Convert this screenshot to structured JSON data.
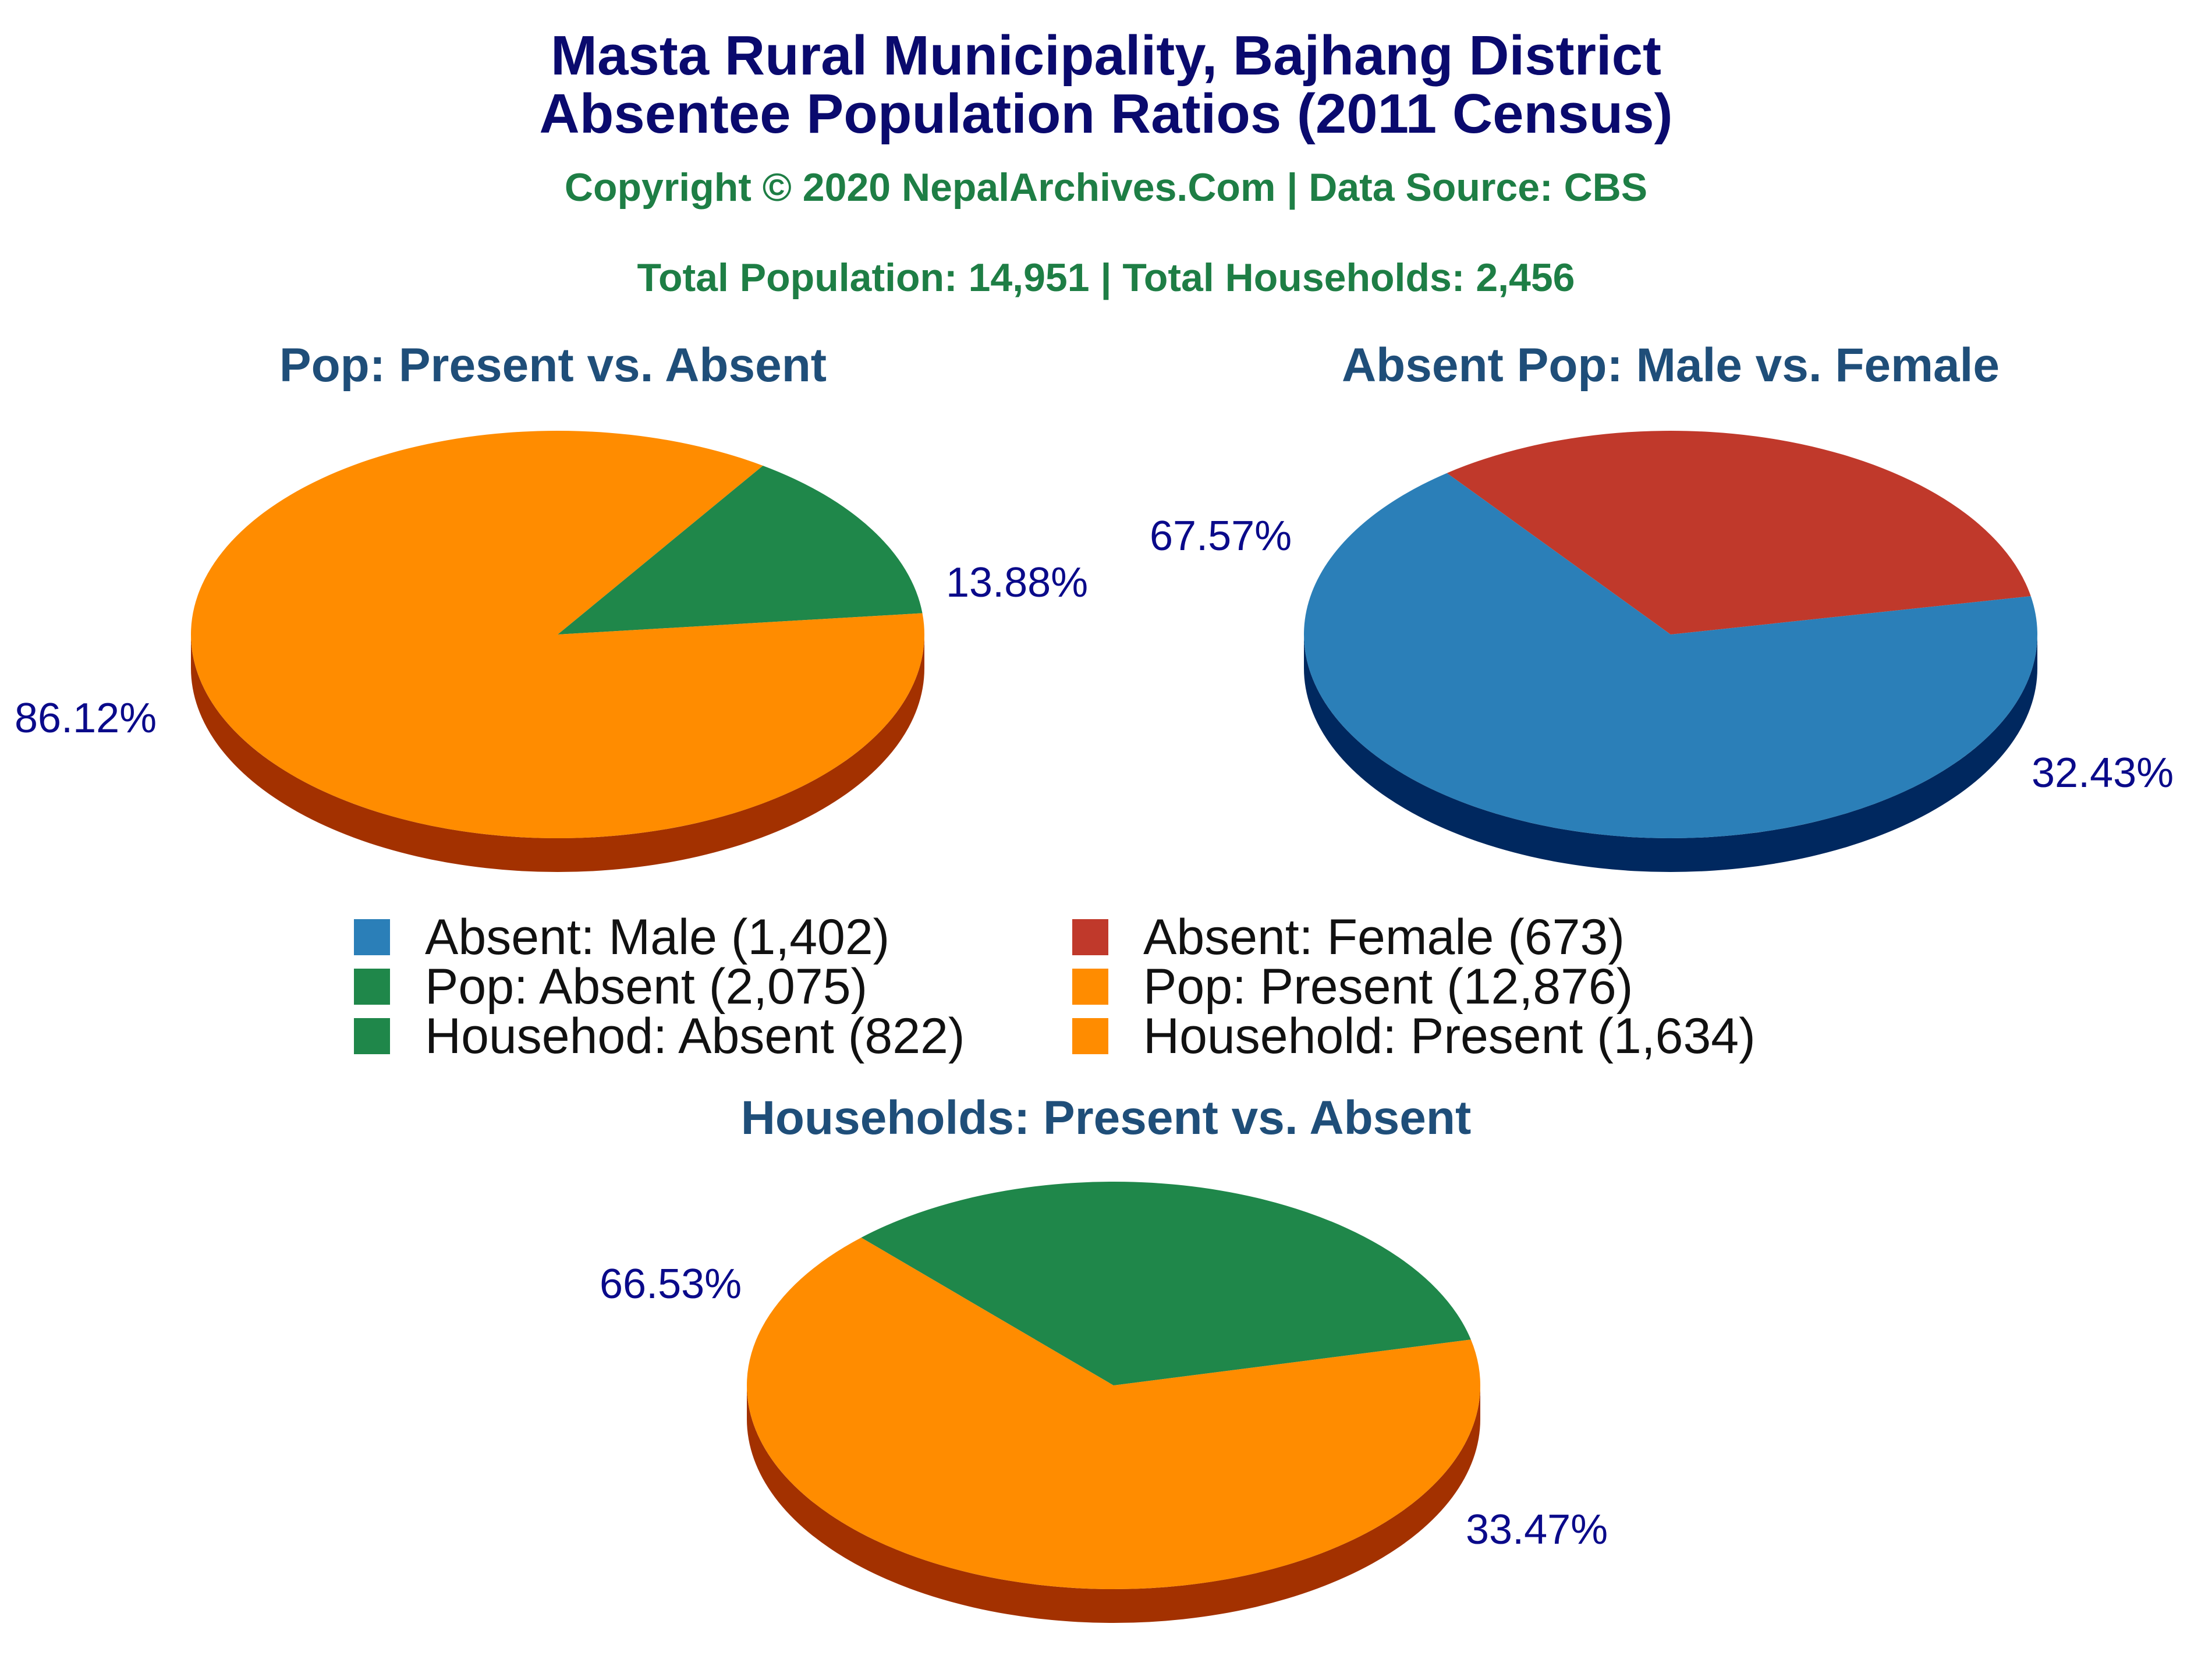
{
  "header": {
    "title_line1": "Masta Rural Municipality, Bajhang District",
    "title_line2": "Absentee Population Ratios (2011 Census)",
    "copyright": "Copyright © 2020 NepalArchives.Com | Data Source: CBS",
    "totals": "Total Population: 14,951 | Total Households: 2,456"
  },
  "colors": {
    "title": "#0a0a6e",
    "subtitle": "#1e7e45",
    "pie_title": "#1f4e79",
    "slice_label": "#0a0a8a",
    "male": "#2b7fb8",
    "female": "#c0392b",
    "absent": "#1f874a",
    "present": "#ff8c00"
  },
  "legend": {
    "items": [
      {
        "label": "Absent: Male (1,402)",
        "color": "#2b7fb8"
      },
      {
        "label": "Absent: Female (673)",
        "color": "#c0392b"
      },
      {
        "label": "Pop: Absent (2,075)",
        "color": "#1f874a"
      },
      {
        "label": "Pop: Present (12,876)",
        "color": "#ff8c00"
      },
      {
        "label": "Househod: Absent (822)",
        "color": "#1f874a"
      },
      {
        "label": "Household: Present (1,634)",
        "color": "#ff8c00"
      }
    ]
  },
  "chart_data": [
    {
      "type": "pie",
      "title": "Pop: Present vs. Absent",
      "slices": [
        {
          "name": "Pop: Absent",
          "value": 2075,
          "percent": 13.88,
          "label": "13.88%",
          "color": "#1f874a",
          "side_color": "#0a3d1c"
        },
        {
          "name": "Pop: Present",
          "value": 12876,
          "percent": 86.12,
          "label": "86.12%",
          "color": "#ff8c00",
          "side_color": "#a33100"
        }
      ]
    },
    {
      "type": "pie",
      "title": "Absent Pop: Male vs. Female",
      "slices": [
        {
          "name": "Absent: Female",
          "value": 673,
          "percent": 32.43,
          "label": "32.43%",
          "color": "#c0392b",
          "side_color": "#650000"
        },
        {
          "name": "Absent: Male",
          "value": 1402,
          "percent": 67.57,
          "label": "67.57%",
          "color": "#2b7fb8",
          "side_color": "#00285f"
        }
      ]
    },
    {
      "type": "pie",
      "title": "Households: Present vs. Absent",
      "slices": [
        {
          "name": "Househod: Absent",
          "value": 822,
          "percent": 33.47,
          "label": "33.47%",
          "color": "#1f874a",
          "side_color": "#062e00"
        },
        {
          "name": "Household: Present",
          "value": 1634,
          "percent": 66.53,
          "label": "66.53%",
          "color": "#ff8c00",
          "side_color": "#a33100"
        }
      ]
    }
  ]
}
